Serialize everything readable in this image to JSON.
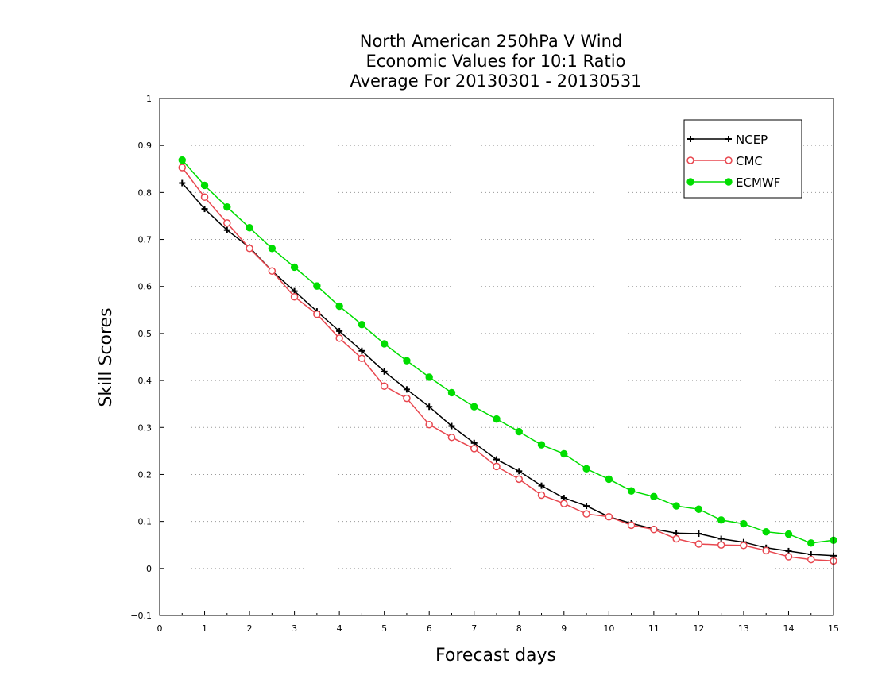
{
  "chart_data": {
    "type": "line",
    "title": [
      "North American 250hPa V Wind",
      "Economic Values for 10:1 Ratio",
      "Average For 20130301 - 20130531"
    ],
    "xlabel": "Forecast days",
    "ylabel": "Skill Scores",
    "xlim": [
      0,
      15
    ],
    "ylim": [
      -0.1,
      1
    ],
    "xticks": [
      0,
      1,
      2,
      3,
      4,
      5,
      6,
      7,
      8,
      9,
      10,
      11,
      12,
      13,
      14,
      15
    ],
    "xtick_labels": [
      "0",
      "1",
      "2",
      "3",
      "4",
      "5",
      "6",
      "7",
      "8",
      "9",
      "10",
      "11",
      "12",
      "13",
      "14",
      "15"
    ],
    "yticks": [
      -0.1,
      0,
      0.1,
      0.2,
      0.3,
      0.4,
      0.5,
      0.6,
      0.7,
      0.8,
      0.9,
      1
    ],
    "ytick_labels": [
      "−0.1",
      "0",
      "0.1",
      "0.2",
      "0.3",
      "0.4",
      "0.5",
      "0.6",
      "0.7",
      "0.8",
      "0.9",
      "1"
    ],
    "grid": "dotted horizontal",
    "legend_position": "top-right",
    "x": [
      0.5,
      1,
      1.5,
      2,
      2.5,
      3,
      3.5,
      4,
      4.5,
      5,
      5.5,
      6,
      6.5,
      7,
      7.5,
      8,
      8.5,
      9,
      9.5,
      10,
      10.5,
      11,
      11.5,
      12,
      12.5,
      13,
      13.5,
      14,
      14.5,
      15
    ],
    "series": [
      {
        "name": "NCEP",
        "color": "#000000",
        "marker": "plus",
        "values": [
          0.82,
          0.765,
          0.72,
          0.683,
          0.633,
          0.59,
          0.547,
          0.505,
          0.463,
          0.419,
          0.381,
          0.344,
          0.303,
          0.267,
          0.232,
          0.207,
          0.176,
          0.15,
          0.133,
          0.11,
          0.096,
          0.084,
          0.075,
          0.074,
          0.063,
          0.056,
          0.044,
          0.037,
          0.03,
          0.027
        ]
      },
      {
        "name": "CMC",
        "color": "#e8474f",
        "marker": "open-circle",
        "values": [
          0.853,
          0.79,
          0.735,
          0.681,
          0.633,
          0.578,
          0.541,
          0.49,
          0.447,
          0.388,
          0.362,
          0.306,
          0.279,
          0.255,
          0.217,
          0.19,
          0.156,
          0.138,
          0.116,
          0.11,
          0.092,
          0.083,
          0.063,
          0.052,
          0.05,
          0.049,
          0.038,
          0.025,
          0.019,
          0.016
        ]
      },
      {
        "name": "ECMWF",
        "color": "#00dd00",
        "marker": "filled-circle",
        "values": [
          0.869,
          0.815,
          0.769,
          0.725,
          0.681,
          0.641,
          0.601,
          0.558,
          0.519,
          0.478,
          0.442,
          0.407,
          0.374,
          0.344,
          0.318,
          0.291,
          0.263,
          0.244,
          0.212,
          0.19,
          0.165,
          0.153,
          0.133,
          0.126,
          0.103,
          0.095,
          0.078,
          0.073,
          0.054,
          0.06
        ]
      }
    ]
  }
}
